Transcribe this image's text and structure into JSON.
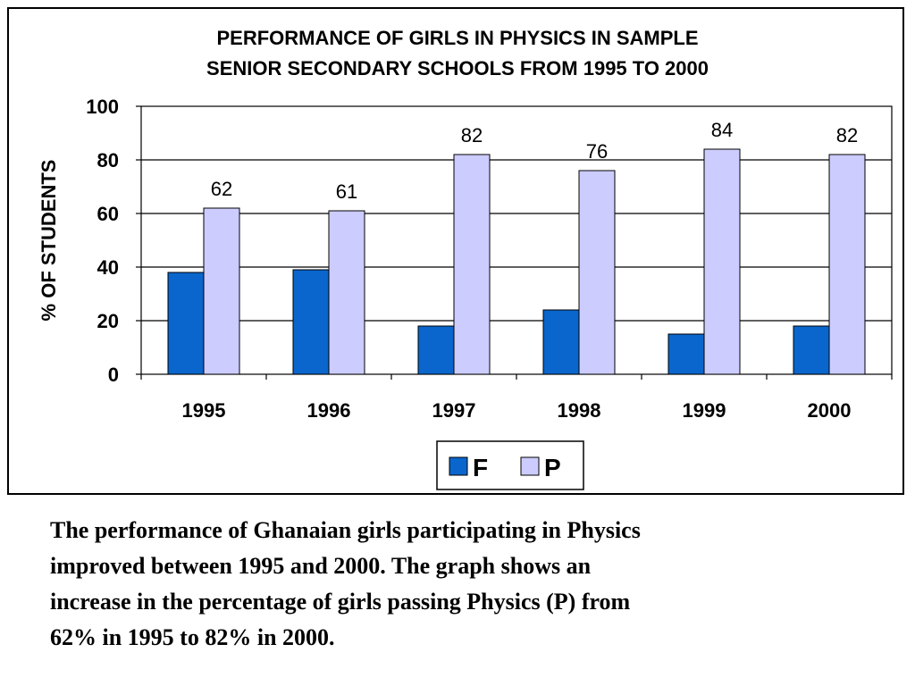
{
  "chart_data": {
    "type": "bar",
    "title": [
      "PERFORMANCE OF GIRLS IN PHYSICS IN SAMPLE",
      "SENIOR SECONDARY SCHOOLS FROM 1995 TO 2000"
    ],
    "ylabel": "% OF STUDENTS",
    "xlabel": "",
    "categories": [
      "1995",
      "1996",
      "1997",
      "1998",
      "1999",
      "2000"
    ],
    "ylim": [
      0,
      100
    ],
    "yticks": [
      0,
      20,
      40,
      60,
      80,
      100
    ],
    "grid": true,
    "legend_position": "bottom",
    "series": [
      {
        "name": "F",
        "values": [
          38,
          39,
          18,
          24,
          15,
          18
        ],
        "color": "#0a66cc",
        "show_labels": false
      },
      {
        "name": "P",
        "values": [
          62,
          61,
          82,
          76,
          84,
          82
        ],
        "color": "#ccccff",
        "show_labels": true
      }
    ]
  },
  "caption": [
    "The performance of Ghanaian girls participating in Physics",
    "improved between 1995 and 2000.  The graph shows an",
    "increase in the percentage of girls passing Physics (P) from",
    "62% in 1995 to 82% in 2000."
  ]
}
